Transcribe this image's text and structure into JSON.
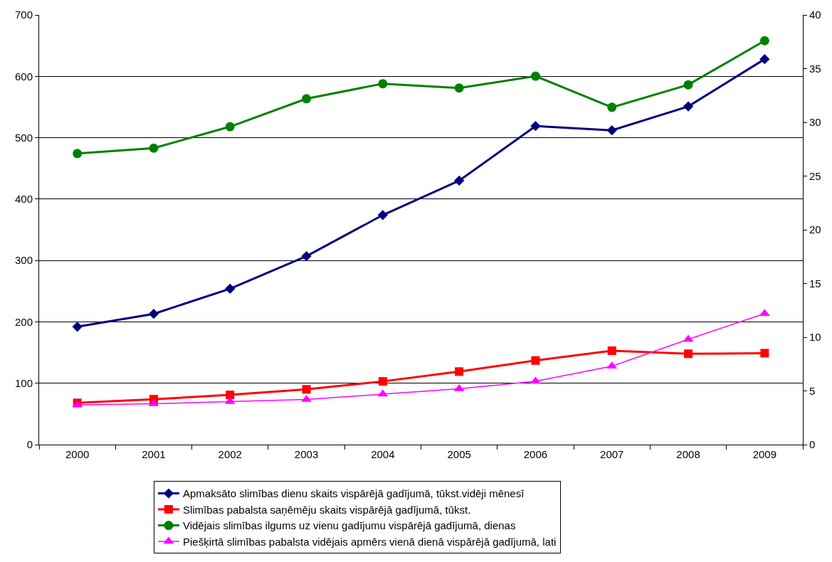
{
  "chart_data": {
    "type": "line",
    "categories": [
      "2000",
      "2001",
      "2002",
      "2003",
      "2004",
      "2005",
      "2006",
      "2007",
      "2008",
      "2009"
    ],
    "series": [
      {
        "name": "Apmaksāto slimības dienu skaits vispārējā gadījumā, tūkst.vidēji mēnesī",
        "color": "#000080",
        "marker": "diamond",
        "values": [
          192,
          213,
          254,
          307,
          374,
          430,
          519,
          512,
          551,
          628
        ]
      },
      {
        "name": "Slimības pabalsta saņēmēju skaits vispārējā gadījumā, tūkst.",
        "color": "#ff0000",
        "marker": "square",
        "values": [
          68,
          74,
          81,
          90,
          103,
          119,
          137,
          153,
          148,
          149
        ]
      },
      {
        "name": "Vidējais slimības ilgums uz vienu gadījumu vispārējā gadījumā, dienas",
        "color": "#008000",
        "marker": "circle",
        "axis": "y2",
        "values": [
          27.1,
          27.6,
          29.6,
          32.2,
          33.6,
          33.2,
          34.3,
          31.4,
          33.5,
          37.6
        ]
      },
      {
        "name": "Piešķirtā slimības pabalsta vidējais apmērs vienā dienā vispārējā gadījumā, lati",
        "color": "#ff00ff",
        "marker": "triangle",
        "axis": "y2",
        "values": [
          3.7,
          3.8,
          4.0,
          4.2,
          4.7,
          5.2,
          5.9,
          7.3,
          9.8,
          12.2
        ]
      }
    ],
    "ylim": [
      0,
      700
    ],
    "yticks": [
      0,
      100,
      200,
      300,
      400,
      500,
      600,
      700
    ],
    "y2lim": [
      0,
      40
    ],
    "y2ticks": [
      0,
      5,
      10,
      15,
      20,
      25,
      30,
      35,
      40
    ],
    "grid": "y",
    "legend": "bottom",
    "line_style": "solid"
  }
}
